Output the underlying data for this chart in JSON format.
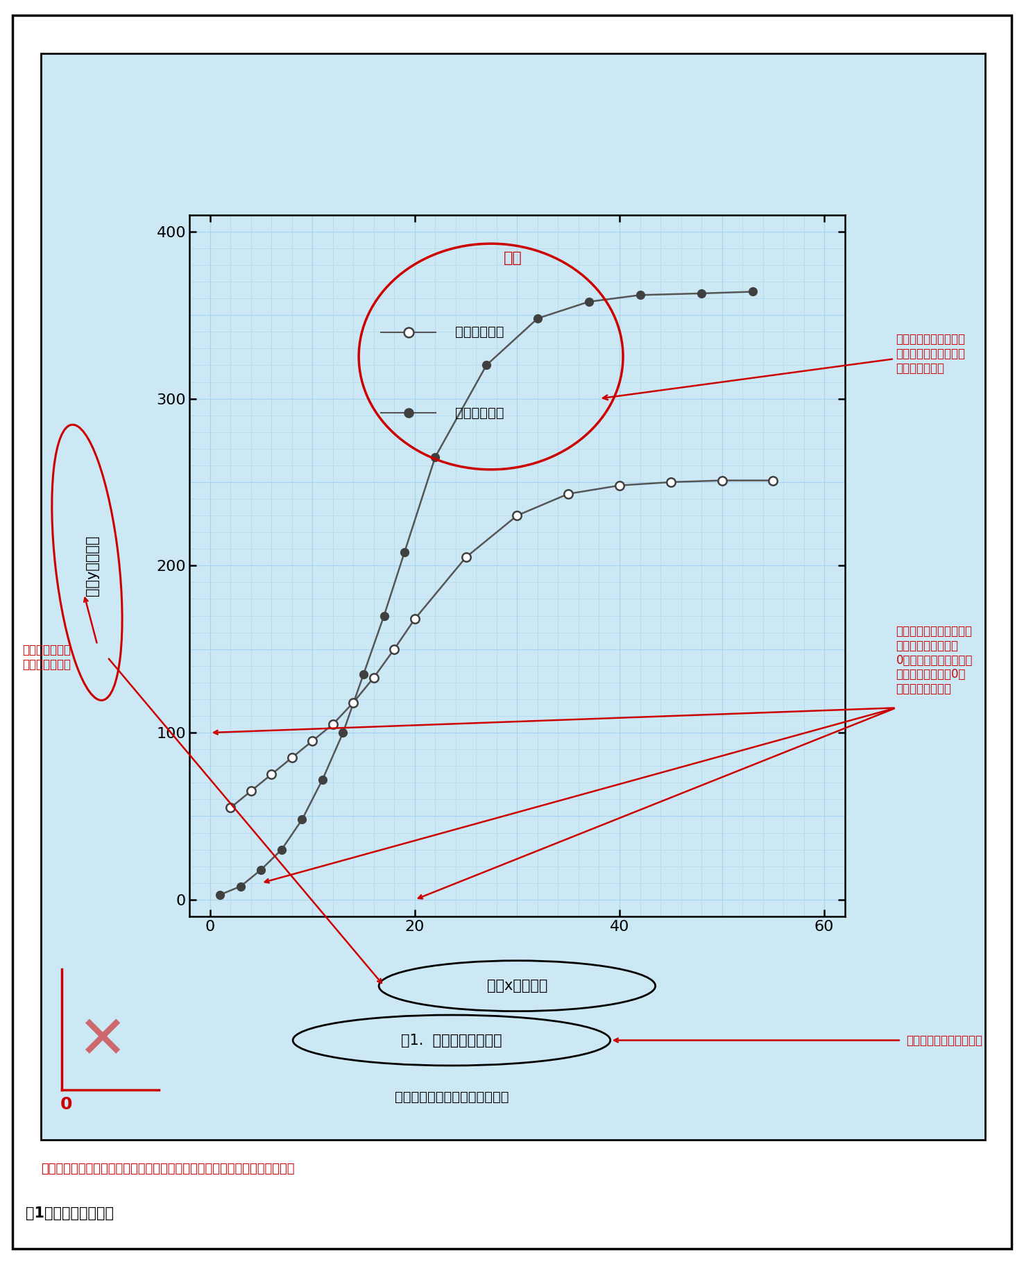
{
  "series1_x": [
    2,
    4,
    6,
    8,
    10,
    12,
    14,
    16,
    18,
    20,
    25,
    30,
    35,
    40,
    45,
    50,
    55
  ],
  "series1_y": [
    55,
    65,
    75,
    85,
    95,
    105,
    118,
    133,
    150,
    168,
    205,
    230,
    243,
    248,
    250,
    251,
    251
  ],
  "series2_x": [
    1,
    3,
    5,
    7,
    9,
    11,
    13,
    15,
    17,
    19,
    22,
    27,
    32,
    37,
    42,
    48,
    53
  ],
  "series2_y": [
    3,
    8,
    18,
    30,
    48,
    72,
    100,
    135,
    170,
    208,
    265,
    320,
    348,
    358,
    362,
    363,
    364
  ],
  "xmin": -2,
  "xmax": 62,
  "ymin": -10,
  "ymax": 410,
  "xticks": [
    0,
    20,
    40,
    60
  ],
  "yticks": [
    0,
    100,
    200,
    300,
    400
  ],
  "xlabel": "変数x　／単位",
  "ylabel": "変数y　／単位",
  "legend_title": "凡例",
  "series1_label": "データ系列１",
  "series2_label": "データ系列２",
  "graph_title": "図1.  グラフのタイトル",
  "caption": "必要ならさらに説明を付ける．",
  "bottom_text": "グラフ用紙の端を原点に使わない．すべての情報は方眼の範囲内に納める．",
  "bottom_title": "図1．グラフの描き方",
  "annot1_text": "データを線で結ぶか，\nどのような線で結ぶか\nは場合による．",
  "annot2_text": "目盛りを付けた場所には\n目盛り線を入れる．\n0付近にもデータがある\nならグラフの端が0で\nある必要はない．",
  "annot3_text": "縦軸横軸の意味\n単位を必ず記入",
  "annot4_text": "図番号とタイトルは必須",
  "grid_color": "#a8d4f0",
  "series1_color": "#404040",
  "series2_color": "#404040",
  "line_color": "#555555",
  "red_color": "#cc0000",
  "paper_bg": "#cce8f4",
  "white": "#ffffff"
}
